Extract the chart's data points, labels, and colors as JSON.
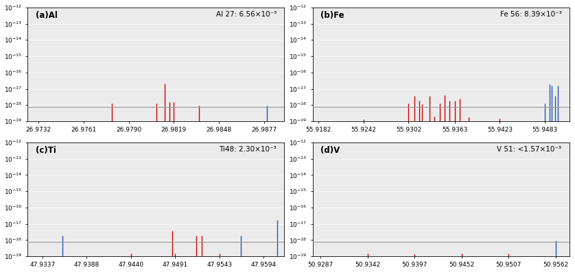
{
  "panels": [
    {
      "label": "(a)Al",
      "annotation": "Al 27: 6.56×10⁻³",
      "xlim": [
        26.9725,
        26.989
      ],
      "xticks": [
        26.9732,
        26.9761,
        26.979,
        26.9819,
        26.9848,
        26.9877
      ],
      "xtick_labels": [
        "26.9732",
        "26.9761",
        "26.9790",
        "26.9819",
        "26.9848",
        "26.9877"
      ],
      "red_lines": [
        [
          26.9779,
          1.3e-18
        ],
        [
          26.9808,
          1.3e-18
        ],
        [
          26.9813,
          2e-17
        ],
        [
          26.9816,
          1.5e-18
        ],
        [
          26.9819,
          1.5e-18
        ],
        [
          26.9835,
          9e-19
        ]
      ],
      "blue_lines": [
        [
          26.9879,
          9e-19
        ]
      ],
      "hline": 8e-19
    },
    {
      "label": "(b)Fe",
      "annotation": "Fe 56: 8.39×10⁻³",
      "xlim": [
        55.9175,
        55.9515
      ],
      "xticks": [
        55.9182,
        55.9242,
        55.9302,
        55.9363,
        55.9423,
        55.9483
      ],
      "xtick_labels": [
        "55.9182",
        "55.9242",
        "55.9302",
        "55.9363",
        "55.9423",
        "55.9483"
      ],
      "red_lines": [
        [
          55.9242,
          1.3e-19
        ],
        [
          55.9302,
          1.2e-18
        ],
        [
          55.931,
          3.5e-18
        ],
        [
          55.9316,
          1.8e-18
        ],
        [
          55.932,
          1.1e-18
        ],
        [
          55.933,
          3.5e-18
        ],
        [
          55.9336,
          2e-19
        ],
        [
          55.9343,
          1.3e-18
        ],
        [
          55.935,
          3.8e-18
        ],
        [
          55.9356,
          1.8e-18
        ],
        [
          55.9363,
          1.8e-18
        ],
        [
          55.937,
          2.4e-18
        ],
        [
          55.9382,
          1.8e-19
        ],
        [
          55.9423,
          1.5e-19
        ]
      ],
      "blue_lines": [
        [
          55.9483,
          1.2e-18
        ],
        [
          55.9489,
          1.8e-17
        ],
        [
          55.9492,
          1.5e-17
        ],
        [
          55.9496,
          3.5e-18
        ],
        [
          55.95,
          1.5e-17
        ]
      ],
      "hline": 8e-19
    },
    {
      "label": "(c)Ti",
      "annotation": "Ti48: 2.30×10⁻³",
      "xlim": [
        47.932,
        47.9618
      ],
      "xticks": [
        47.9337,
        47.9388,
        47.944,
        47.9491,
        47.9543,
        47.9594
      ],
      "xtick_labels": [
        "47.9337",
        "47.9388",
        "47.9440",
        "47.9491",
        "47.9543",
        "47.9594"
      ],
      "red_lines": [
        [
          47.944,
          1.5e-19
        ],
        [
          47.9488,
          3.5e-18
        ],
        [
          47.9491,
          1.5e-19
        ],
        [
          47.9516,
          1.8e-18
        ],
        [
          47.9522,
          1.8e-18
        ],
        [
          47.9543,
          1.5e-19
        ]
      ],
      "blue_lines": [
        [
          47.936,
          1.8e-18
        ],
        [
          47.9568,
          1.8e-18
        ],
        [
          47.961,
          1.8e-17
        ]
      ],
      "hline": 8e-19
    },
    {
      "label": "(d)V",
      "annotation": "V 51: <1.57×10⁻³",
      "xlim": [
        50.9278,
        50.9578
      ],
      "xticks": [
        50.9287,
        50.9342,
        50.9397,
        50.9452,
        50.9507,
        50.9562
      ],
      "xtick_labels": [
        "50.9287",
        "50.9342",
        "50.9397",
        "50.9452",
        "50.9507",
        "50.9562"
      ],
      "red_lines": [
        [
          50.9342,
          1.5e-19
        ],
        [
          50.9397,
          1.3e-19
        ],
        [
          50.9452,
          1.5e-19
        ],
        [
          50.9507,
          1.5e-19
        ]
      ],
      "blue_lines": [
        [
          50.9562,
          9e-19
        ]
      ],
      "hline": 8e-19
    }
  ],
  "ylim": [
    1e-19,
    1e-12
  ],
  "yticks": [
    1e-19,
    1e-18,
    1e-17,
    1e-16,
    1e-15,
    1e-14,
    1e-13,
    1e-12
  ],
  "ytick_labels": [
    "10$^{-19}$",
    "10$^{-18}$",
    "10$^{-17}$",
    "10$^{-16}$",
    "10$^{-15}$",
    "10$^{-14}$",
    "10$^{-13}$",
    "10$^{-12}$"
  ],
  "red_color": "#cc0000",
  "blue_color": "#2255aa",
  "hline_color": "#999999",
  "background_color": "#ebebeb",
  "tick_fontsize": 6.5,
  "label_fontsize": 8.5,
  "annotation_fontsize": 7.5
}
